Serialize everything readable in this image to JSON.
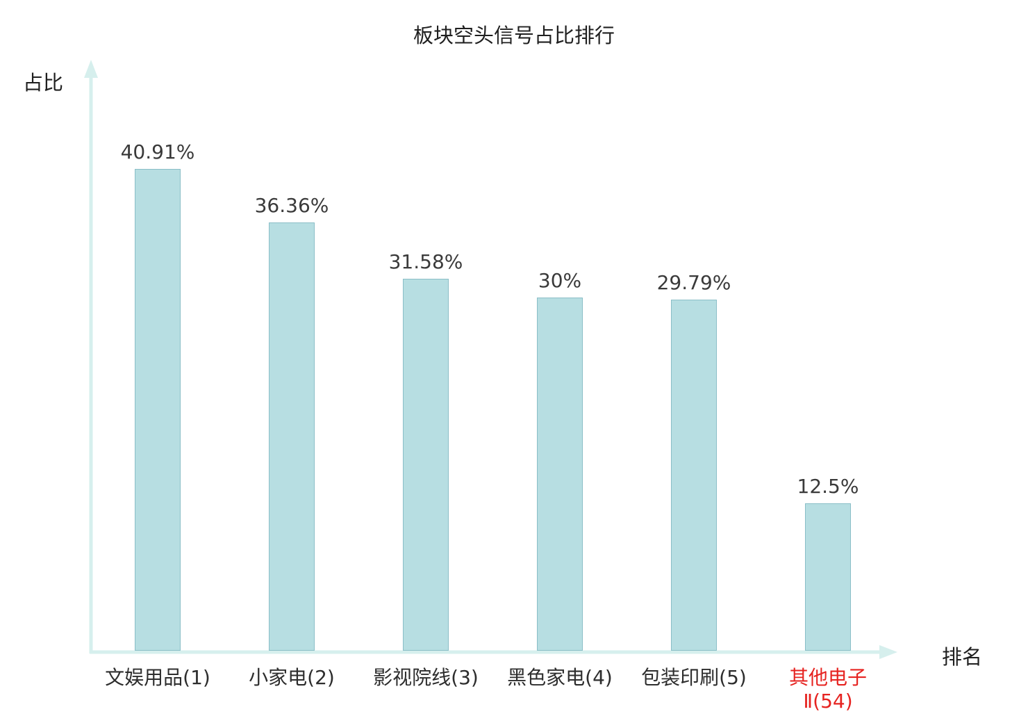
{
  "chart_data": {
    "type": "bar",
    "title": "板块空头信号占比排行",
    "xlabel": "排名",
    "ylabel": "占比",
    "categories": [
      "文娱用品(1)",
      "小家电(2)",
      "影视院线(3)",
      "黑色家电(4)",
      "包装印刷(5)",
      "其他电子Ⅱ(54)"
    ],
    "category_lines": [
      [
        "文娱用品(1)"
      ],
      [
        "小家电(2)"
      ],
      [
        "影视院线(3)"
      ],
      [
        "黑色家电(4)"
      ],
      [
        "包装印刷(5)"
      ],
      [
        "其他电子",
        "Ⅱ(54)"
      ]
    ],
    "values": [
      40.91,
      36.36,
      31.58,
      30,
      29.79,
      12.5
    ],
    "value_labels": [
      "40.91%",
      "36.36%",
      "31.58%",
      "30%",
      "29.79%",
      "12.5%"
    ],
    "ylim": [
      0,
      45
    ],
    "grid": false,
    "legend": "none",
    "bar_color": "#b7dee2",
    "bar_border_color": "#8abec7",
    "axis_color": "#d6efed",
    "text_color": "#2d2d2d",
    "highlight_index": 5,
    "highlight_color": "#e62320"
  }
}
